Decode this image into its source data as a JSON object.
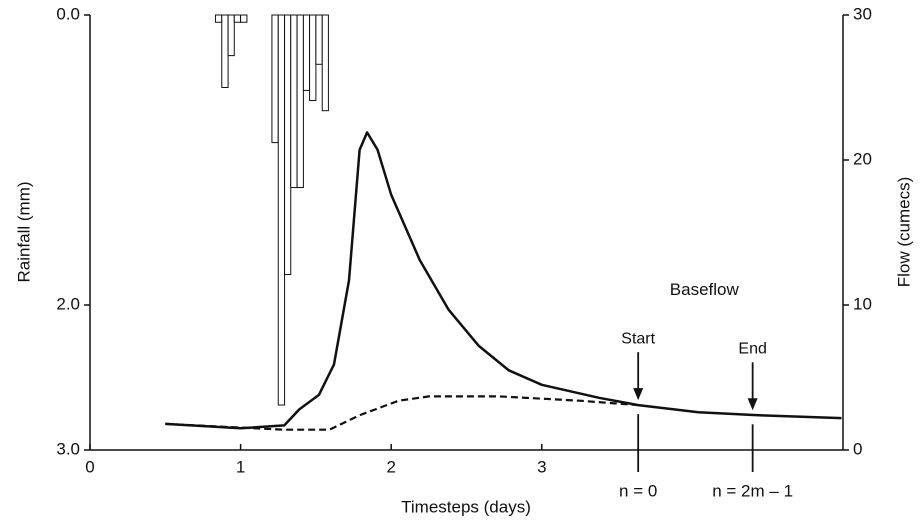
{
  "chart_data": {
    "type": "hydrograph",
    "xlabel": "Timesteps (days)",
    "ylabel": "Rainfall (mm)",
    "y2label": "Flow (cumecs)",
    "xlim": [
      0,
      5
    ],
    "xticks": [
      0,
      1,
      2,
      3
    ],
    "ylim": [
      0,
      3
    ],
    "yticks": [
      {
        "value": 0,
        "label": "0.0"
      },
      {
        "value": 2,
        "label": "2.0"
      },
      {
        "value": 3,
        "label": "3.0"
      }
    ],
    "y_inverted": true,
    "y2lim": [
      0,
      30
    ],
    "y2ticks": [
      0,
      10,
      20,
      30
    ],
    "rainfall": {
      "color": "#ffffff",
      "bins": [
        0.833,
        0.875,
        0.917,
        0.958,
        1.0,
        1.042,
        1.083,
        1.125,
        1.167,
        1.208,
        1.25,
        1.292,
        1.333,
        1.375,
        1.417,
        1.458,
        1.5,
        1.542,
        1.583
      ],
      "values": [
        0.05,
        0.5,
        0.28,
        0.05,
        0.05,
        0,
        0,
        0,
        0,
        0.88,
        2.69,
        1.79,
        1.19,
        1.19,
        0.52,
        0.59,
        0.34,
        0.66
      ]
    },
    "series": [
      {
        "axis": "y2",
        "color": "#111111",
        "dashed": false,
        "x": [
          0.5,
          1.0,
          1.29,
          1.39,
          1.52,
          1.62,
          1.72,
          1.79,
          1.84,
          1.91,
          2.0,
          2.19,
          2.38,
          2.58,
          2.78,
          3.0,
          3.38,
          3.64,
          4.04,
          4.44,
          4.99
        ],
        "values": [
          1.8,
          1.5,
          1.7,
          2.8,
          3.8,
          5.9,
          11.7,
          20.7,
          21.9,
          20.7,
          17.6,
          13.1,
          9.7,
          7.2,
          5.5,
          4.5,
          3.6,
          3.1,
          2.6,
          2.4,
          2.2
        ]
      },
      {
        "axis": "y2",
        "color": "#111111",
        "dashed": true,
        "x": [
          0.5,
          1.29,
          1.59,
          1.79,
          2.05,
          2.25,
          2.72,
          3.25,
          3.64
        ],
        "values": [
          1.8,
          1.4,
          1.4,
          2.4,
          3.4,
          3.7,
          3.7,
          3.4,
          3.1
        ]
      }
    ],
    "annotation": {
      "text": "Baseflow",
      "x": 3.85,
      "y": 11
    },
    "markers": [
      {
        "x": 3.64,
        "y": 3.3,
        "top_label": "Start",
        "bottom_label": "n = 0"
      },
      {
        "x": 4.4,
        "y": 2.6,
        "top_label": "End",
        "bottom_label": "n = 2m – 1"
      }
    ]
  }
}
